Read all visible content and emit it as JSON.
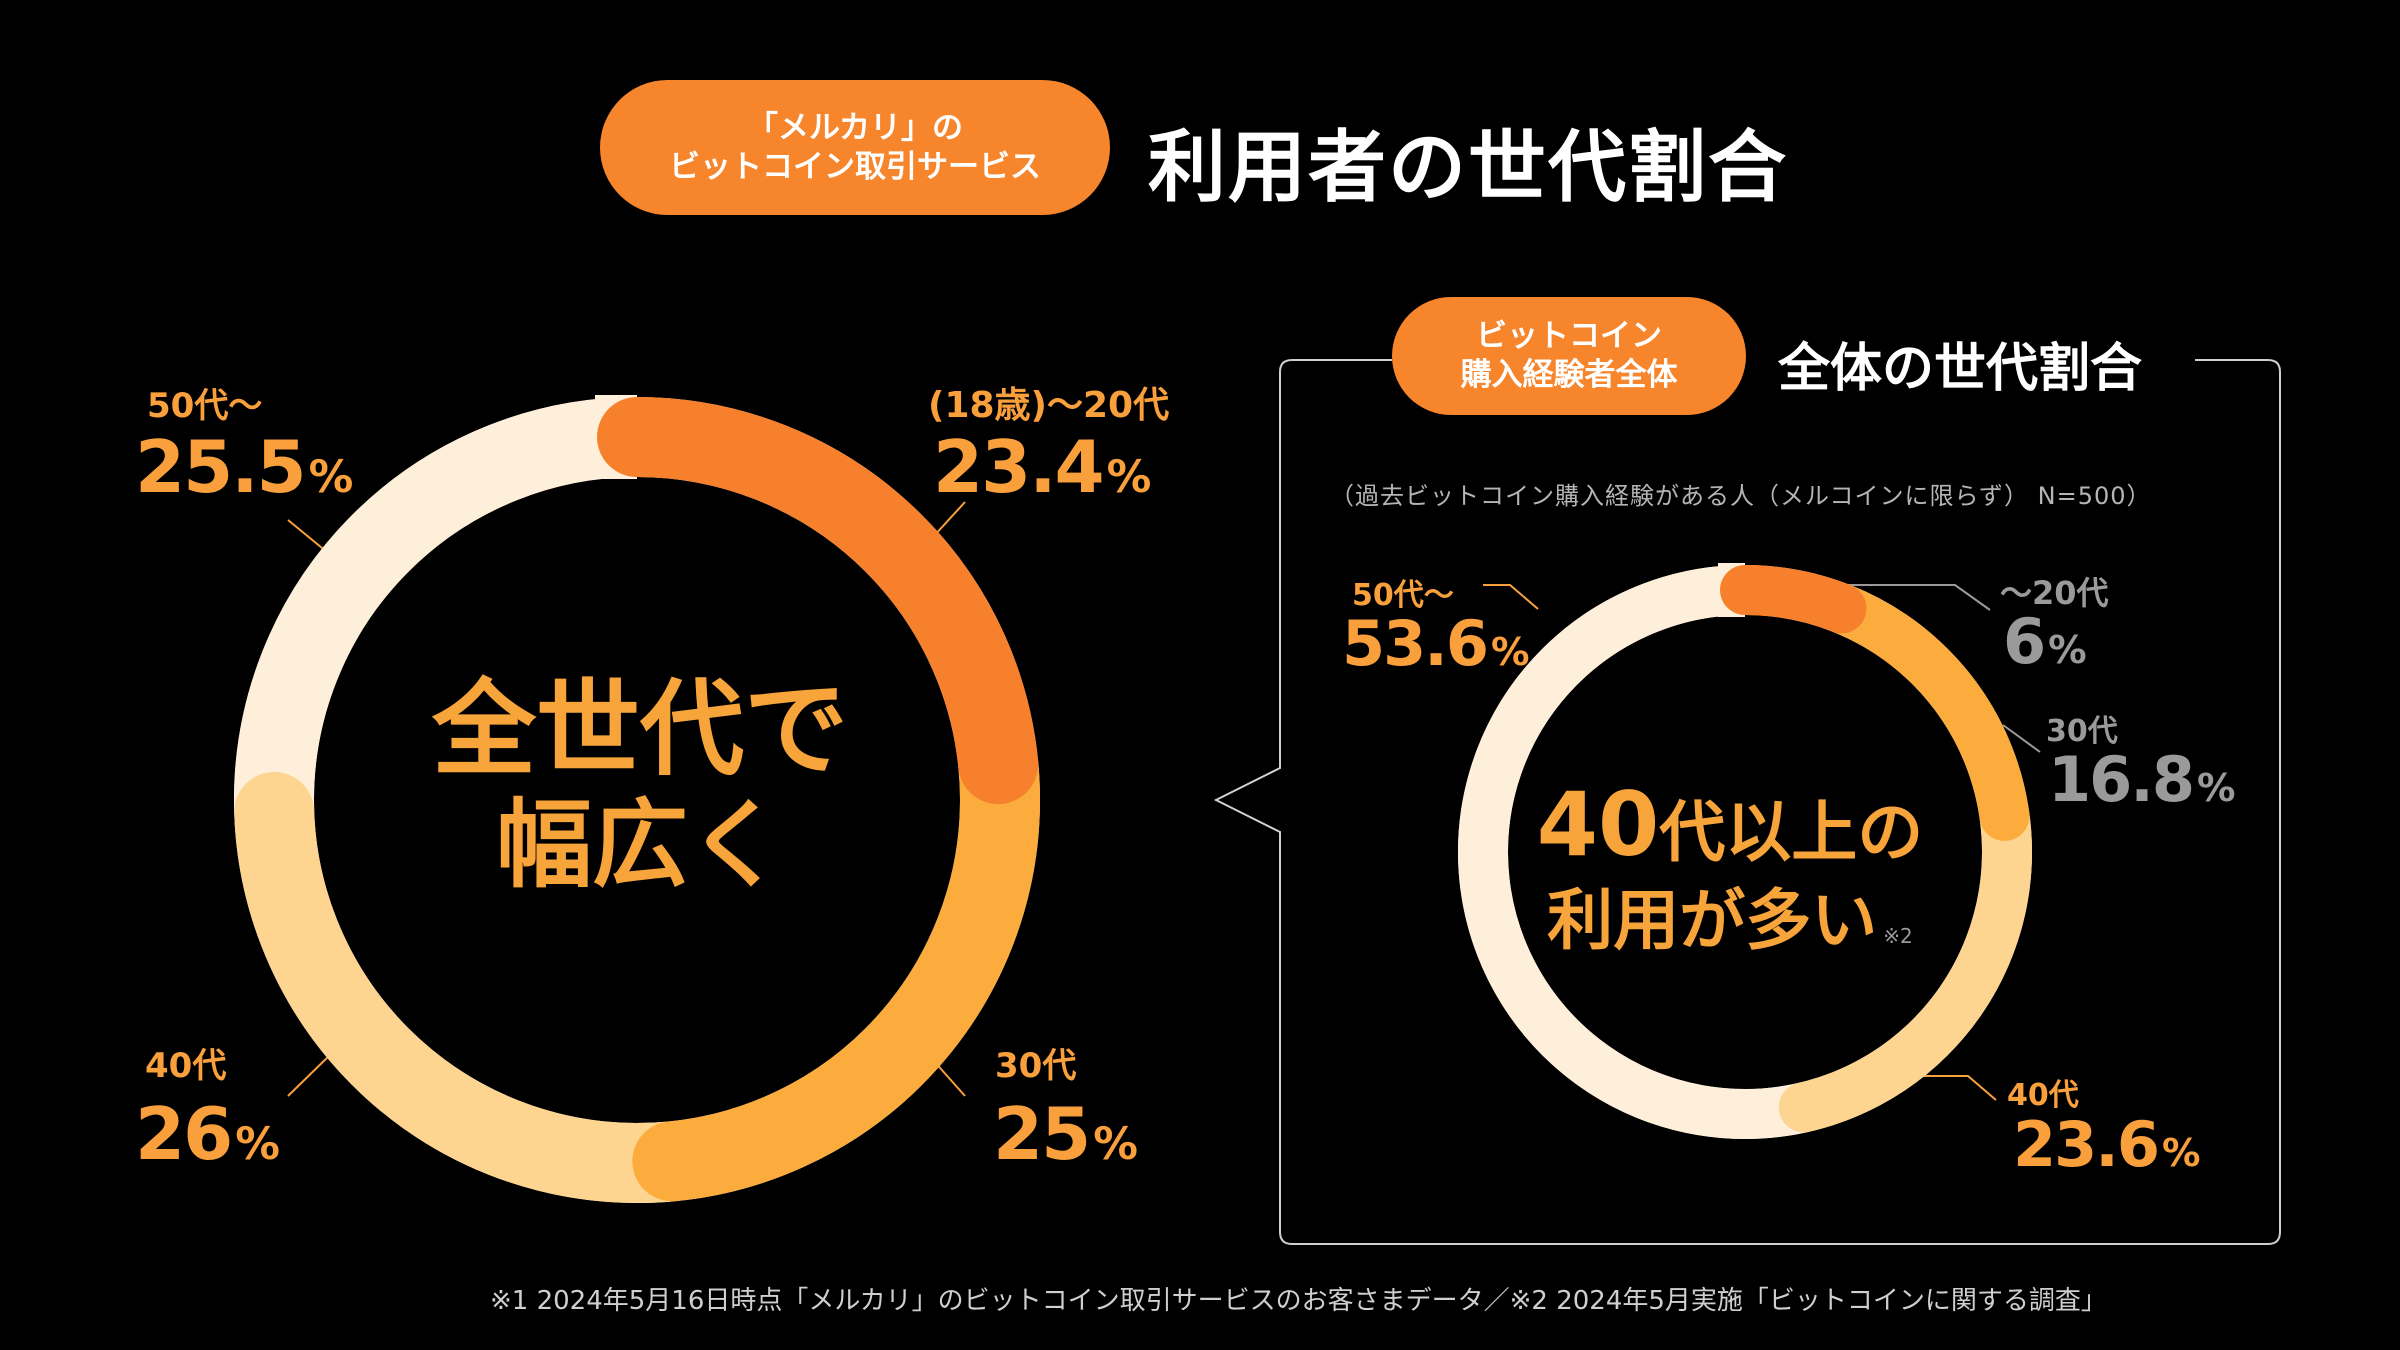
{
  "header": {
    "badge_line1": "「メルカリ」の",
    "badge_line2": "ビットコイン取引サービス",
    "title": "利用者の世代割合"
  },
  "main_chart": {
    "center_line1": "全世代で",
    "center_line2": "幅広く",
    "percent_sign": "%"
  },
  "sub_panel": {
    "badge_line1": "ビットコイン",
    "badge_line2": "購入経験者全体",
    "title": "全体の世代割合",
    "note": "（過去ビットコイン購入経験がある人（メルコインに限らず） N=500）",
    "center_line1_num": "40",
    "center_line1_text": "代以上の",
    "center_line2": "利用が多い",
    "center_note": "※2"
  },
  "footnote": "※1 2024年5月16日時点「メルカリ」のビットコイン取引サービスのお客さまデータ／※2 2024年5月実施「ビットコインに関する調査」",
  "colors": {
    "seg_dark_orange": "#f7802c",
    "seg_orange": "#fbac3d",
    "seg_light": "#fdd591",
    "seg_cream": "#fdefd9",
    "accent": "#f7852c"
  },
  "chart_data": [
    {
      "type": "pie",
      "title": "利用者の世代割合",
      "categories": [
        "(18歳)〜20代",
        "30代",
        "40代",
        "50代〜"
      ],
      "values": [
        23.4,
        25,
        26,
        25.5
      ],
      "value_labels": [
        "23.4",
        "25",
        "26",
        "25.5"
      ],
      "unit": "%"
    },
    {
      "type": "pie",
      "title": "全体の世代割合",
      "categories": [
        "〜20代",
        "30代",
        "40代",
        "50代〜"
      ],
      "values": [
        6,
        16.8,
        23.6,
        53.6
      ],
      "value_labels": [
        "6",
        "16.8",
        "23.6",
        "53.6"
      ],
      "unit": "%"
    }
  ]
}
